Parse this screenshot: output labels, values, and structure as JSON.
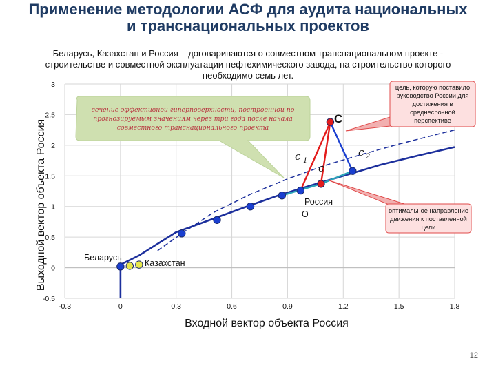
{
  "page": {
    "title_line1": "Применение методологии  АСФ для аудита национальных",
    "title_line2": "и транснациональных проектов",
    "subtitle_line1": "Беларусь, Казахстан и Россия – договариваются о совместном транснациональном проекте -",
    "subtitle_line2": "строительстве и совместной эксплуатации нефтехимического завода, на строительство которого",
    "subtitle_line3": "необходимо семь лет.",
    "page_number": "12"
  },
  "chart_data": {
    "type": "line",
    "xlabel": "Входной вектор объекта  Россия",
    "ylabel": "Выходной вектор объекта  Россия",
    "xlim": [
      -0.3,
      1.8
    ],
    "ylim": [
      -0.5,
      3
    ],
    "grid": true,
    "xticks": [
      "-0.3",
      "0",
      "0.3",
      "0.6",
      "0.9",
      "1.2",
      "1.5",
      "1.8"
    ],
    "xtick_values": [
      -0.3,
      0,
      0.3,
      0.6,
      0.9,
      1.2,
      1.5,
      1.8
    ],
    "yticks": [
      "3",
      "2.5",
      "2",
      "1.5",
      "1",
      "0.5",
      "0",
      "-0.5"
    ],
    "ytick_values": [
      3,
      2.5,
      2,
      1.5,
      1,
      0.5,
      0,
      -0.5
    ],
    "series": [
      {
        "style": "solid",
        "color": "#1c2f9c",
        "x": [
          0,
          0.1,
          0.3,
          0.5,
          0.7,
          0.85,
          1.0,
          1.2,
          1.4,
          1.6,
          1.8
        ],
        "y": [
          0.05,
          0.2,
          0.58,
          0.8,
          1.02,
          1.18,
          1.32,
          1.5,
          1.68,
          1.83,
          1.97
        ]
      },
      {
        "style": "dashed",
        "color": "#1c2f9c",
        "x": [
          0.2,
          0.35,
          0.5,
          0.7,
          0.9,
          1.1,
          1.3,
          1.5,
          1.8
        ],
        "y": [
          0.28,
          0.6,
          0.9,
          1.2,
          1.45,
          1.67,
          1.85,
          2.02,
          2.25
        ]
      },
      {
        "style": "solid",
        "color": "#1c2f9c",
        "x": [
          0,
          0
        ],
        "y": [
          -0.5,
          0.05
        ]
      }
    ],
    "points": [
      {
        "x": 0.1,
        "y": 0.05,
        "color": "#e8e84a"
      },
      {
        "x": 0.05,
        "y": 0.03,
        "color": "#e8e84a"
      },
      {
        "x": 0.0,
        "y": 0.02,
        "color": "#1a3fd0"
      },
      {
        "x": 0.33,
        "y": 0.56,
        "color": "#1a3fd0"
      },
      {
        "x": 0.52,
        "y": 0.78,
        "color": "#1a3fd0"
      },
      {
        "x": 0.7,
        "y": 1.0,
        "color": "#1a3fd0"
      },
      {
        "x": 0.87,
        "y": 1.18,
        "color": "#1a3fd0"
      },
      {
        "x": 0.97,
        "y": 1.26,
        "color": "#1a3fd0"
      },
      {
        "x": 1.08,
        "y": 1.37,
        "color": "#e31b1b"
      },
      {
        "x": 1.13,
        "y": 2.38,
        "color": "#e31b1b"
      },
      {
        "x": 1.25,
        "y": 1.58,
        "color": "#1a3fd0"
      }
    ],
    "vectors": [
      {
        "from": [
          1.13,
          2.38
        ],
        "to": [
          0.97,
          1.26
        ],
        "color": "#e31b1b"
      },
      {
        "from": [
          1.13,
          2.38
        ],
        "to": [
          1.08,
          1.37
        ],
        "color": "#e31b1b"
      },
      {
        "from": [
          1.13,
          2.38
        ],
        "to": [
          1.25,
          1.58
        ],
        "color": "#1a3fd0"
      },
      {
        "from": [
          0.87,
          1.18
        ],
        "to": [
          1.08,
          1.37
        ],
        "color": "#2aa3b8"
      },
      {
        "from": [
          1.08,
          1.37
        ],
        "to": [
          1.25,
          1.58
        ],
        "color": "#2aa3b8"
      }
    ],
    "annotations": {
      "belarus": "Беларусь",
      "kazakhstan": "Казахстан",
      "russia": "Россия",
      "point_c": "C",
      "c1": "c",
      "c1_sub": "1",
      "c2": "c",
      "c2_sub": "2",
      "c_prime": "c",
      "o_marker": "O",
      "callout_green": [
        "сечение эффективной гиперповерхности, построенной по",
        "прогнозируемым значениям через три года после начала",
        "совместного транснационального проекта"
      ],
      "callout_goal": [
        "цель, которую поставило",
        "руководство России для",
        "достижения в",
        "среднесрочной",
        "перспективе"
      ],
      "callout_optimal": [
        "оптимальное направление",
        "движения к поставленной",
        "цели"
      ]
    }
  }
}
